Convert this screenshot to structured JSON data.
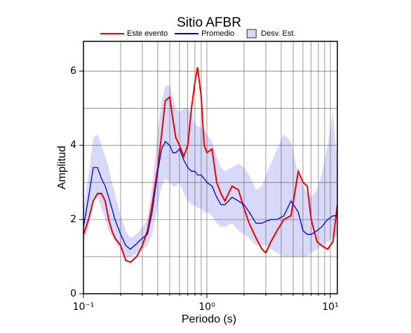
{
  "chart_data": {
    "type": "line",
    "title": "Sitio AFBR",
    "x_label": "Periodo (s)",
    "y_label": "Amplitud",
    "log_x": true,
    "grid": true,
    "xlim": [
      0.1,
      11.4
    ],
    "ylim": [
      0,
      6.8
    ],
    "xticks": [
      {
        "value": 0.1,
        "label": "10⁻¹"
      },
      {
        "value": 1,
        "label": "10⁰"
      },
      {
        "value": 10,
        "label": "10¹"
      }
    ],
    "x_minor_ticks": [
      0.2,
      0.3,
      0.4,
      0.5,
      0.6,
      0.7,
      0.8,
      0.9,
      2,
      3,
      4,
      5,
      6,
      7,
      8,
      9
    ],
    "yticks": [
      0,
      2,
      4,
      6
    ],
    "y_minor_ticks": [
      1,
      3,
      5
    ],
    "x": [
      0.1,
      0.11,
      0.12,
      0.13,
      0.14,
      0.15,
      0.16,
      0.17,
      0.18,
      0.2,
      0.22,
      0.24,
      0.27,
      0.3,
      0.33,
      0.36,
      0.4,
      0.43,
      0.46,
      0.5,
      0.53,
      0.56,
      0.6,
      0.65,
      0.7,
      0.75,
      0.8,
      0.84,
      0.9,
      0.95,
      1.0,
      1.1,
      1.2,
      1.3,
      1.4,
      1.6,
      1.8,
      2.0,
      2.2,
      2.5,
      2.8,
      3.0,
      3.3,
      3.7,
      4.2,
      4.8,
      5.5,
      6.0,
      6.5,
      7.0,
      7.8,
      8.5,
      9.5,
      10.5,
      11.4
    ],
    "band": {
      "name": "Desv. Est.",
      "color": "#d8d8f8",
      "lower": [
        1.3,
        1.8,
        2.6,
        2.6,
        2.3,
        2.0,
        1.7,
        1.55,
        1.4,
        1.2,
        1.0,
        1.0,
        1.1,
        1.2,
        1.3,
        1.6,
        2.4,
        2.9,
        3.1,
        3.0,
        2.9,
        2.9,
        3.0,
        2.7,
        2.5,
        2.4,
        2.4,
        2.3,
        2.3,
        2.2,
        2.2,
        2.1,
        1.9,
        1.8,
        1.8,
        1.9,
        1.7,
        1.6,
        1.5,
        1.3,
        1.3,
        1.3,
        1.2,
        1.1,
        1.0,
        1.0,
        1.0,
        1.0,
        1.0,
        1.1,
        1.2,
        1.3,
        1.4,
        1.5,
        1.6
      ],
      "upper": [
        2.3,
        3.2,
        4.2,
        4.3,
        4.0,
        3.7,
        3.4,
        3.0,
        2.7,
        2.1,
        1.7,
        1.5,
        1.6,
        1.8,
        2.0,
        2.9,
        4.4,
        5.2,
        5.6,
        5.6,
        5.3,
        5.0,
        4.9,
        5.0,
        5.0,
        4.8,
        4.6,
        4.5,
        4.5,
        4.4,
        4.3,
        4.1,
        3.7,
        3.4,
        3.3,
        3.4,
        3.5,
        3.4,
        3.2,
        2.8,
        2.9,
        3.2,
        3.5,
        3.9,
        4.3,
        4.1,
        3.2,
        2.9,
        2.7,
        2.6,
        2.8,
        3.2,
        4.0,
        4.9,
        3.5
      ]
    },
    "series": [
      {
        "name": "Este evento",
        "color": "#ee0000",
        "values": [
          1.6,
          2.0,
          2.5,
          2.7,
          2.7,
          2.5,
          2.0,
          1.7,
          1.5,
          1.3,
          0.9,
          0.85,
          1.0,
          1.3,
          1.7,
          2.4,
          3.4,
          4.3,
          5.2,
          5.3,
          4.7,
          4.2,
          4.0,
          3.7,
          4.0,
          5.0,
          5.7,
          6.1,
          5.3,
          4.0,
          3.8,
          3.9,
          3.0,
          2.7,
          2.5,
          2.9,
          2.8,
          2.3,
          1.9,
          1.5,
          1.2,
          1.1,
          1.4,
          1.7,
          2.0,
          2.1,
          3.3,
          3.0,
          2.9,
          2.0,
          1.4,
          1.3,
          1.2,
          1.4,
          2.4
        ]
      },
      {
        "name": "Promedio",
        "color": "#0000dd",
        "values": [
          1.8,
          2.6,
          3.4,
          3.4,
          3.1,
          2.9,
          2.6,
          2.3,
          2.0,
          1.6,
          1.3,
          1.2,
          1.35,
          1.5,
          1.6,
          2.2,
          3.3,
          3.9,
          4.1,
          4.0,
          3.8,
          3.8,
          3.9,
          3.6,
          3.4,
          3.3,
          3.3,
          3.2,
          3.2,
          3.1,
          3.0,
          2.9,
          2.6,
          2.4,
          2.4,
          2.6,
          2.5,
          2.4,
          2.2,
          1.9,
          1.9,
          1.95,
          2.0,
          2.0,
          2.1,
          2.5,
          2.2,
          1.7,
          1.6,
          1.6,
          1.7,
          1.8,
          2.0,
          2.1,
          2.1
        ]
      }
    ]
  }
}
